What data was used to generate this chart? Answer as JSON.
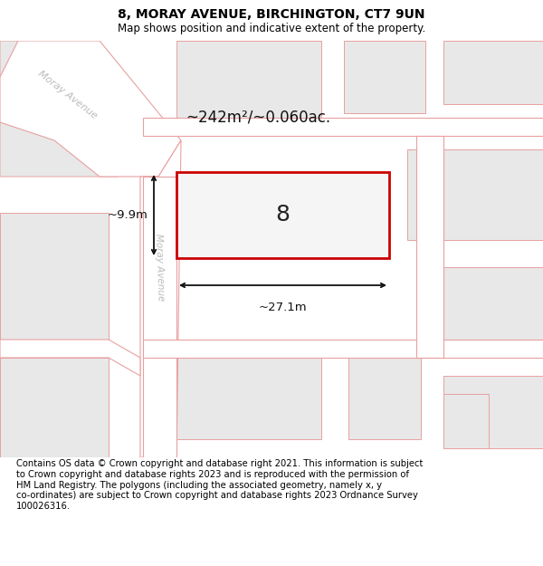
{
  "title": "8, MORAY AVENUE, BIRCHINGTON, CT7 9UN",
  "subtitle": "Map shows position and indicative extent of the property.",
  "footer": "Contains OS data © Crown copyright and database right 2021. This information is subject\nto Crown copyright and database rights 2023 and is reproduced with the permission of\nHM Land Registry. The polygons (including the associated geometry, namely x, y\nco-ordinates) are subject to Crown copyright and database rights 2023 Ordnance Survey\n100026316.",
  "bg_color": "#ffffff",
  "map_bg": "#f0f0f0",
  "parcel_fill": "#e8e8e8",
  "road_fill": "#ffffff",
  "road_stroke": "#e8a0a0",
  "parcel_stroke": "#e8a0a0",
  "plot_stroke": "#cc0000",
  "plot_fill": "#f5f5f5",
  "dim_color": "#111111",
  "street_label_color": "#bbbbbb",
  "area_label": "~242m²/~0.060ac.",
  "plot_number": "8",
  "dim_width": "~27.1m",
  "dim_height": "~9.9m",
  "street_name": "Moray Avenue",
  "title_fontsize": 10,
  "subtitle_fontsize": 8.5,
  "footer_fontsize": 7.2,
  "area_label_fontsize": 12,
  "plot_number_fontsize": 18,
  "dim_fontsize": 9.5
}
